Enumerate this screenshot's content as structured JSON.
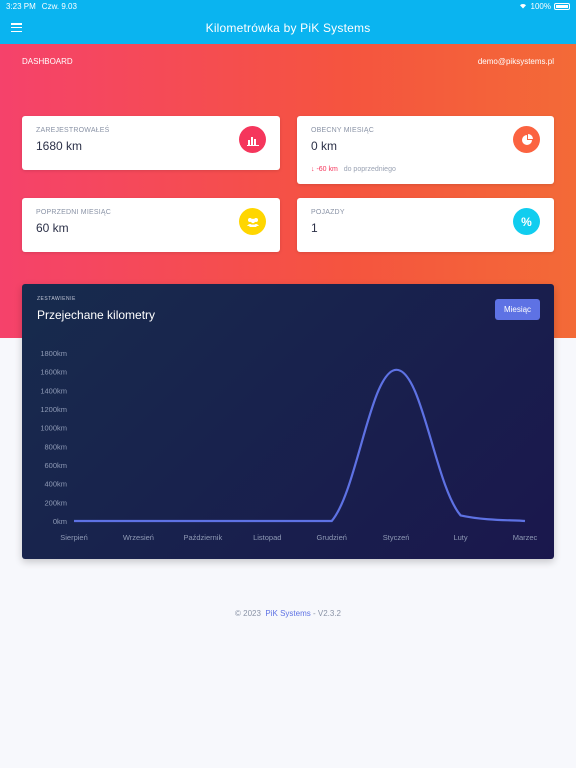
{
  "status": {
    "time": "3:23 PM",
    "date": "Czw. 9.03",
    "battery": "100%"
  },
  "nav": {
    "title": "Kilometrówka by PiK Systems"
  },
  "hero": {
    "section": "DASHBOARD",
    "user": "demo@piksystems.pl"
  },
  "cards": [
    {
      "label": "ZAREJESTROWAŁEŚ",
      "value": "1680 km",
      "icon": "bar-chart-icon",
      "color": "#f5365c"
    },
    {
      "label": "OBECNY MIESIĄC",
      "value": "0 km",
      "icon": "pie-chart-icon",
      "color": "#fb6340",
      "delta": "-60 km",
      "delta_note": "do poprzedniego"
    },
    {
      "label": "POPRZEDNI MIESIĄC",
      "value": "60 km",
      "icon": "users-icon",
      "color": "#ffd600"
    },
    {
      "label": "POJAZDY",
      "value": "1",
      "icon": "percent-icon",
      "color": "#11cdef"
    }
  ],
  "chart": {
    "tag": "ZESTAWIENIE",
    "title": "Przejechane kilometry",
    "button": "Miesiąc"
  },
  "chart_data": {
    "type": "line",
    "categories": [
      "Sierpień",
      "Wrzesień",
      "Październik",
      "Listopad",
      "Grudzień",
      "Styczeń",
      "Luty",
      "Marzec"
    ],
    "series": [
      {
        "values": [
          0,
          0,
          0,
          0,
          0,
          1620,
          60,
          0
        ]
      }
    ],
    "y_ticks": [
      "0km",
      "200km",
      "400km",
      "600km",
      "800km",
      "1000km",
      "1200km",
      "1400km",
      "1600km",
      "1800km"
    ],
    "ylim": [
      0,
      1800
    ],
    "line_color": "#5e72e4",
    "grid": false
  },
  "footer": {
    "prefix": "© 2023",
    "brand": "PiK Systems",
    "version": "- V2.3.2"
  }
}
